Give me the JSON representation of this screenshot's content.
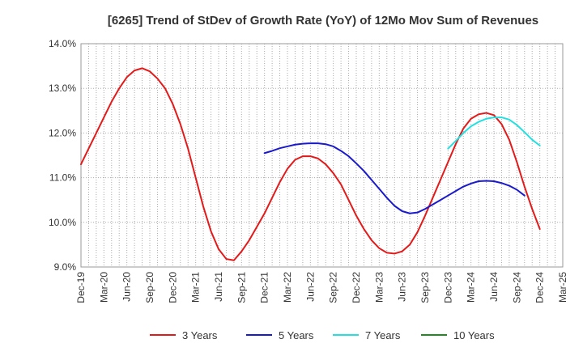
{
  "chart_data": {
    "type": "line",
    "title": "[6265]  Trend of StDev of Growth Rate (YoY) of 12Mo Mov Sum of Revenues",
    "xlabel": "",
    "ylabel": "",
    "ylim": [
      9.0,
      14.0
    ],
    "y_ticks": [
      "14.0%",
      "13.0%",
      "12.0%",
      "11.0%",
      "10.0%",
      "9.0%"
    ],
    "y_tick_values": [
      14.0,
      13.0,
      12.0,
      11.0,
      10.0,
      9.0
    ],
    "x_tick_labels": [
      "Dec-19",
      "Mar-20",
      "Jun-20",
      "Sep-20",
      "Dec-20",
      "Mar-21",
      "Jun-21",
      "Sep-21",
      "Dec-21",
      "Mar-22",
      "Jun-22",
      "Sep-22",
      "Dec-22",
      "Mar-23",
      "Jun-23",
      "Sep-23",
      "Dec-23",
      "Mar-24",
      "Jun-24",
      "Sep-24",
      "Dec-24",
      "Mar-25"
    ],
    "grid": true,
    "legend_position": "bottom",
    "series": [
      {
        "name": "3 Years",
        "color": "#e41a1a",
        "start_index": 0,
        "values": [
          11.3,
          11.65,
          12.0,
          12.35,
          12.7,
          13.0,
          13.25,
          13.4,
          13.45,
          13.38,
          13.22,
          13.0,
          12.65,
          12.2,
          11.65,
          11.0,
          10.35,
          9.8,
          9.4,
          9.18,
          9.15,
          9.35,
          9.6,
          9.9,
          10.2,
          10.55,
          10.9,
          11.2,
          11.4,
          11.48,
          11.48,
          11.43,
          11.3,
          11.1,
          10.85,
          10.5,
          10.15,
          9.85,
          9.6,
          9.42,
          9.32,
          9.3,
          9.35,
          9.5,
          9.78,
          10.15,
          10.55,
          10.95,
          11.35,
          11.75,
          12.1,
          12.32,
          12.42,
          12.45,
          12.4,
          12.2,
          11.85,
          11.35,
          10.8,
          10.3,
          9.85
        ]
      },
      {
        "name": "5 Years",
        "color": "#1a1acc",
        "start_index": 24,
        "values": [
          11.55,
          11.6,
          11.66,
          11.7,
          11.74,
          11.76,
          11.77,
          11.77,
          11.75,
          11.7,
          11.6,
          11.48,
          11.32,
          11.15,
          10.95,
          10.75,
          10.55,
          10.37,
          10.25,
          10.2,
          10.22,
          10.3,
          10.4,
          10.5,
          10.6,
          10.7,
          10.8,
          10.87,
          10.92,
          10.93,
          10.92,
          10.88,
          10.82,
          10.73,
          10.6
        ]
      },
      {
        "name": "7 Years",
        "color": "#22e0e0",
        "start_index": 48,
        "values": [
          11.65,
          11.82,
          12.0,
          12.15,
          12.25,
          12.32,
          12.35,
          12.35,
          12.3,
          12.18,
          12.02,
          11.85,
          11.72
        ]
      },
      {
        "name": "10 Years",
        "color": "#1f8c1f",
        "start_index": 0,
        "values": []
      }
    ]
  }
}
